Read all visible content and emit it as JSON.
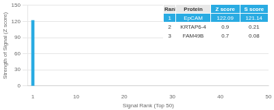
{
  "chart_data": {
    "type": "bar",
    "x": [
      1
    ],
    "values": [
      122.09
    ],
    "color": "#29ABE2",
    "xlabel": "Signal Rank (Top 50)",
    "ylabel": "Strength of Signal (Z score)",
    "xlim": [
      0,
      50
    ],
    "xticks": [
      1,
      10,
      20,
      30,
      40,
      50
    ],
    "ylim": [
      0,
      150
    ],
    "yticks": [
      0,
      30,
      60,
      90,
      120,
      150
    ],
    "grid": "y",
    "table": {
      "columns": [
        "Rank",
        "Protein",
        "Z score",
        "S score"
      ],
      "rows": [
        [
          "1",
          "EpCAM",
          "122.09",
          "121.14"
        ],
        [
          "2",
          "KRTAP6-4",
          "0.9",
          "0.21"
        ],
        [
          "3",
          "FAM49B",
          "0.7",
          "0.08"
        ]
      ],
      "header_colors": [
        "#e8e8e8",
        "#e8e8e8",
        "#29ABE2",
        "#29ABE2"
      ],
      "row_colors": [
        "#29ABE2",
        "#ffffff",
        "#ffffff"
      ]
    }
  }
}
